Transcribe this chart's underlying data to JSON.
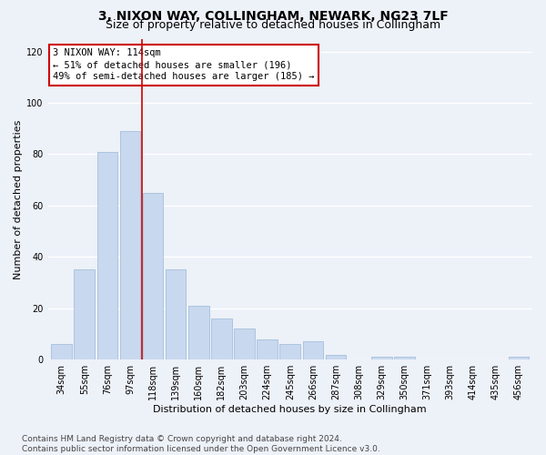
{
  "title": "3, NIXON WAY, COLLINGHAM, NEWARK, NG23 7LF",
  "subtitle": "Size of property relative to detached houses in Collingham",
  "xlabel": "Distribution of detached houses by size in Collingham",
  "ylabel": "Number of detached properties",
  "bar_values": [
    6,
    35,
    81,
    89,
    65,
    35,
    21,
    16,
    12,
    8,
    6,
    7,
    2,
    0,
    1,
    1,
    0,
    0,
    0,
    0,
    1
  ],
  "bin_labels": [
    "34sqm",
    "55sqm",
    "76sqm",
    "97sqm",
    "118sqm",
    "139sqm",
    "160sqm",
    "182sqm",
    "203sqm",
    "224sqm",
    "245sqm",
    "266sqm",
    "287sqm",
    "308sqm",
    "329sqm",
    "350sqm",
    "371sqm",
    "393sqm",
    "414sqm",
    "435sqm",
    "456sqm"
  ],
  "annotation_line1": "3 NIXON WAY: 114sqm",
  "annotation_line2": "← 51% of detached houses are smaller (196)",
  "annotation_line3": "49% of semi-detached houses are larger (185) →",
  "vline_position": 3.5,
  "bar_color": "#c8d8ee",
  "bar_edge_color": "#9ab8d8",
  "vline_color": "#cc0000",
  "annotation_box_edge": "#cc0000",
  "ylim": [
    0,
    125
  ],
  "yticks": [
    0,
    20,
    40,
    60,
    80,
    100,
    120
  ],
  "bg_color": "#edf1f8",
  "grid_color": "#ffffff",
  "title_fontsize": 10,
  "subtitle_fontsize": 9,
  "axis_label_fontsize": 8,
  "tick_fontsize": 7,
  "annotation_fontsize": 7.5,
  "footer_fontsize": 6.5,
  "footer_text1": "Contains HM Land Registry data © Crown copyright and database right 2024.",
  "footer_text2": "Contains public sector information licensed under the Open Government Licence v3.0."
}
